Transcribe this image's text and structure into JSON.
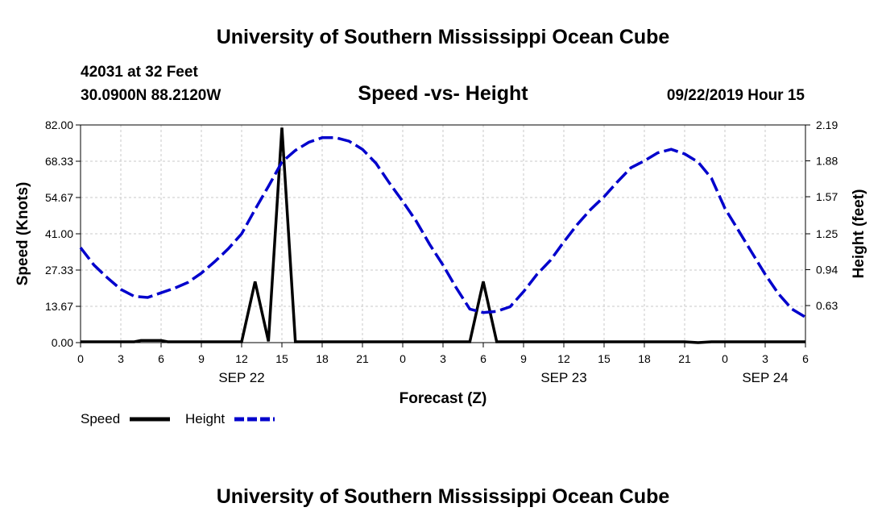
{
  "header": {
    "title": "University of Southern Mississippi Ocean Cube",
    "station": "42031 at 32 Feet",
    "coordinates": "30.0900N 88.2120W",
    "timestamp": "09/22/2019 Hour 15"
  },
  "footer": {
    "title": "University of Southern Mississippi Ocean Cube"
  },
  "chart_data": {
    "type": "line",
    "title": "Speed -vs- Height",
    "xlabel": "Forecast (Z)",
    "ylabel_left": "Speed (Knots)",
    "ylabel_right": "Height (feet)",
    "x_hours_range": [
      0,
      54
    ],
    "x_tick_hours": [
      0,
      3,
      6,
      9,
      12,
      15,
      18,
      21,
      24,
      27,
      30,
      33,
      36,
      39,
      42,
      45,
      48,
      51,
      54
    ],
    "x_tick_labels": [
      "0",
      "3",
      "6",
      "9",
      "12",
      "15",
      "18",
      "21",
      "0",
      "3",
      "6",
      "9",
      "12",
      "15",
      "18",
      "21",
      "0",
      "3",
      "6"
    ],
    "date_labels": [
      {
        "hour": 12,
        "label": "SEP 22"
      },
      {
        "hour": 36,
        "label": "SEP 23"
      },
      {
        "hour": 51,
        "label": "SEP 24"
      }
    ],
    "y_left": {
      "range": [
        0,
        82
      ],
      "ticks": [
        0,
        13.67,
        27.33,
        41,
        54.67,
        68.33,
        82
      ],
      "tick_labels": [
        "0.00",
        "13.67",
        "27.33",
        "41.00",
        "54.67",
        "68.33",
        "82.00"
      ]
    },
    "y_right": {
      "range": [
        0.31,
        2.19
      ],
      "ticks": [
        0.63,
        0.94,
        1.25,
        1.57,
        1.88,
        2.19
      ],
      "tick_labels": [
        "0.63",
        "0.94",
        "1.25",
        "1.57",
        "1.88",
        "2.19"
      ]
    },
    "grid": true,
    "series": [
      {
        "name": "Speed",
        "axis": "left",
        "color": "#000000",
        "style": "solid",
        "points": [
          [
            0,
            0.3
          ],
          [
            4,
            0.3
          ],
          [
            4.5,
            0.8
          ],
          [
            6,
            0.8
          ],
          [
            6.5,
            0.3
          ],
          [
            12,
            0.3
          ],
          [
            13,
            23
          ],
          [
            14,
            0.5
          ],
          [
            15,
            81
          ],
          [
            16,
            0.3
          ],
          [
            29,
            0.3
          ],
          [
            30,
            23
          ],
          [
            31,
            0.3
          ],
          [
            45,
            0.3
          ],
          [
            46,
            0
          ],
          [
            47,
            0.3
          ],
          [
            49,
            0.3
          ],
          [
            54,
            0.3
          ]
        ]
      },
      {
        "name": "Height",
        "axis": "right",
        "color": "#0000cc",
        "style": "dashed",
        "points": [
          [
            0,
            1.13
          ],
          [
            1,
            0.98
          ],
          [
            2,
            0.87
          ],
          [
            3,
            0.77
          ],
          [
            4,
            0.71
          ],
          [
            5,
            0.7
          ],
          [
            6,
            0.74
          ],
          [
            7,
            0.78
          ],
          [
            8,
            0.83
          ],
          [
            9,
            0.91
          ],
          [
            10,
            1.01
          ],
          [
            11,
            1.12
          ],
          [
            12,
            1.25
          ],
          [
            13,
            1.46
          ],
          [
            14,
            1.66
          ],
          [
            15,
            1.87
          ],
          [
            16,
            1.97
          ],
          [
            17,
            2.04
          ],
          [
            18,
            2.08
          ],
          [
            19,
            2.08
          ],
          [
            20,
            2.05
          ],
          [
            21,
            1.98
          ],
          [
            22,
            1.86
          ],
          [
            23,
            1.69
          ],
          [
            24,
            1.53
          ],
          [
            25,
            1.36
          ],
          [
            26,
            1.16
          ],
          [
            27,
            0.98
          ],
          [
            28,
            0.78
          ],
          [
            29,
            0.6
          ],
          [
            30,
            0.57
          ],
          [
            31,
            0.58
          ],
          [
            32,
            0.62
          ],
          [
            33,
            0.75
          ],
          [
            34,
            0.9
          ],
          [
            35,
            1.02
          ],
          [
            36,
            1.18
          ],
          [
            37,
            1.33
          ],
          [
            38,
            1.46
          ],
          [
            39,
            1.57
          ],
          [
            40,
            1.7
          ],
          [
            41,
            1.82
          ],
          [
            42,
            1.88
          ],
          [
            43,
            1.95
          ],
          [
            44,
            1.98
          ],
          [
            45,
            1.94
          ],
          [
            46,
            1.87
          ],
          [
            47,
            1.73
          ],
          [
            48,
            1.47
          ],
          [
            49,
            1.28
          ],
          [
            50,
            1.09
          ],
          [
            51,
            0.9
          ],
          [
            52,
            0.73
          ],
          [
            53,
            0.6
          ],
          [
            54,
            0.53
          ]
        ]
      }
    ],
    "legend": [
      {
        "label": "Speed",
        "color": "#000000",
        "style": "solid"
      },
      {
        "label": "Height",
        "color": "#0000cc",
        "style": "dashed"
      }
    ]
  }
}
